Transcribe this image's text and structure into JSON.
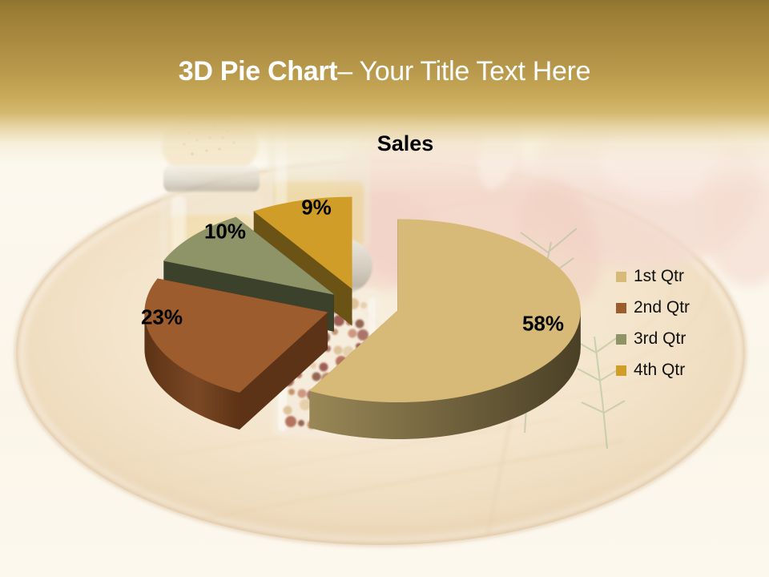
{
  "slide": {
    "title_bold": "3D Pie Chart",
    "title_rest": "– Your Title Text Here",
    "title_color": "#ffffff"
  },
  "theme": {
    "banner_gold_dark": "#9a7c34",
    "banner_gold_light": "#d4b86f",
    "background_cream": "#fbf5e9"
  },
  "chart_data": {
    "type": "pie",
    "style": "3d-exploded",
    "title": "Sales",
    "start_angle": "12 o'clock",
    "direction": "clockwise",
    "value_suffix": "%",
    "legend_position": "right",
    "grid": false,
    "slices": [
      {
        "label": "1st Qtr",
        "value": 58,
        "color_top": "#d7ba78",
        "color_side_light": "#998756",
        "color_side_dark": "#4a4026"
      },
      {
        "label": "2nd Qtr",
        "value": 23,
        "color_top": "#9c5c2d",
        "color_side_light": "#7b4824",
        "color_side_dark": "#5c3316"
      },
      {
        "label": "3rd Qtr",
        "value": 10,
        "color_top": "#8e9368",
        "color_side_light": "#565d3b",
        "color_side_dark": "#3b412a"
      },
      {
        "label": "4th Qtr",
        "value": 9,
        "color_top": "#d09d28",
        "color_side_light": "#8a681f",
        "color_side_dark": "#6b5316"
      }
    ]
  }
}
